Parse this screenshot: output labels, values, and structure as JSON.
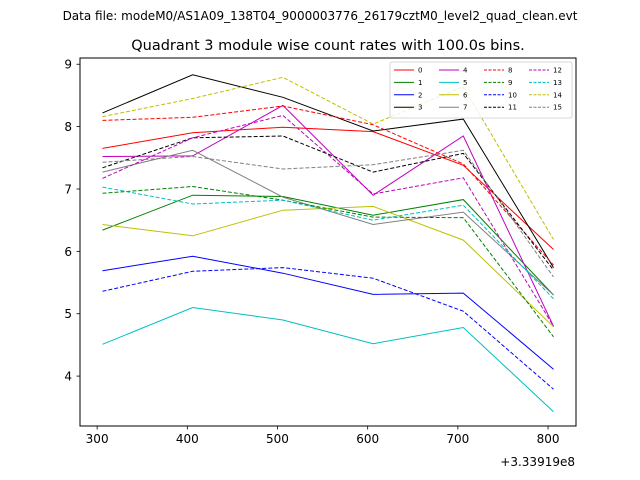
{
  "chart_data": {
    "type": "line",
    "suptitle": "Data file: modeM0/AS1A09_138T04_9000003776_26179cztM0_level2_quad_clean.evt",
    "title": "Quadrant 3 module wise count rates with 100.0s bins.",
    "xlabel": "",
    "ylabel": "",
    "x_offset_label": "+3.33919e8",
    "x": [
      306,
      406,
      506,
      606,
      706,
      806
    ],
    "xticks": [
      300,
      400,
      500,
      600,
      700,
      800
    ],
    "yticks": [
      4,
      5,
      6,
      7,
      8,
      9
    ],
    "xlim": [
      281,
      831
    ],
    "ylim": [
      3.2,
      9.1
    ],
    "legend_position": "top-right",
    "series": [
      {
        "name": "0",
        "color": "#ff0000",
        "dashed": false,
        "values": [
          7.65,
          7.9,
          7.99,
          7.92,
          7.38,
          6.03
        ]
      },
      {
        "name": "1",
        "color": "#008000",
        "dashed": false,
        "values": [
          6.34,
          6.9,
          6.88,
          6.58,
          6.83,
          5.3
        ]
      },
      {
        "name": "2",
        "color": "#0000ff",
        "dashed": false,
        "values": [
          5.69,
          5.92,
          5.65,
          5.31,
          5.33,
          4.11
        ]
      },
      {
        "name": "3",
        "color": "#000000",
        "dashed": false,
        "values": [
          8.22,
          8.83,
          8.47,
          7.93,
          8.12,
          5.74
        ]
      },
      {
        "name": "4",
        "color": "#bf00bf",
        "dashed": false,
        "values": [
          7.52,
          7.53,
          8.34,
          6.9,
          7.85,
          4.8
        ]
      },
      {
        "name": "5",
        "color": "#00bfbf",
        "dashed": false,
        "values": [
          4.51,
          5.1,
          4.9,
          4.52,
          4.78,
          3.43
        ]
      },
      {
        "name": "6",
        "color": "#bfbf00",
        "dashed": false,
        "values": [
          6.43,
          6.25,
          6.66,
          6.72,
          6.18,
          4.79
        ]
      },
      {
        "name": "7",
        "color": "#808080",
        "dashed": false,
        "values": [
          7.27,
          7.62,
          6.87,
          6.43,
          6.63,
          5.3
        ]
      },
      {
        "name": "8",
        "color": "#ff0000",
        "dashed": true,
        "values": [
          8.1,
          8.15,
          8.33,
          8.03,
          7.4,
          5.78
        ]
      },
      {
        "name": "9",
        "color": "#008000",
        "dashed": true,
        "values": [
          6.93,
          7.04,
          6.82,
          6.55,
          6.54,
          4.63
        ]
      },
      {
        "name": "10",
        "color": "#0000ff",
        "dashed": true,
        "values": [
          5.36,
          5.68,
          5.74,
          5.57,
          5.04,
          3.79
        ]
      },
      {
        "name": "11",
        "color": "#000000",
        "dashed": true,
        "values": [
          7.34,
          7.82,
          7.85,
          7.27,
          7.57,
          5.7
        ]
      },
      {
        "name": "12",
        "color": "#bf00bf",
        "dashed": true,
        "values": [
          7.17,
          7.82,
          8.18,
          6.92,
          7.18,
          4.8
        ]
      },
      {
        "name": "13",
        "color": "#00bfbf",
        "dashed": true,
        "values": [
          7.03,
          6.76,
          6.82,
          6.5,
          6.74,
          5.24
        ]
      },
      {
        "name": "14",
        "color": "#bfbf00",
        "dashed": true,
        "values": [
          8.16,
          8.45,
          8.79,
          8.04,
          8.64,
          6.19
        ]
      },
      {
        "name": "15",
        "color": "#808080",
        "dashed": true,
        "values": [
          7.43,
          7.52,
          7.32,
          7.39,
          7.62,
          5.59
        ]
      }
    ]
  }
}
